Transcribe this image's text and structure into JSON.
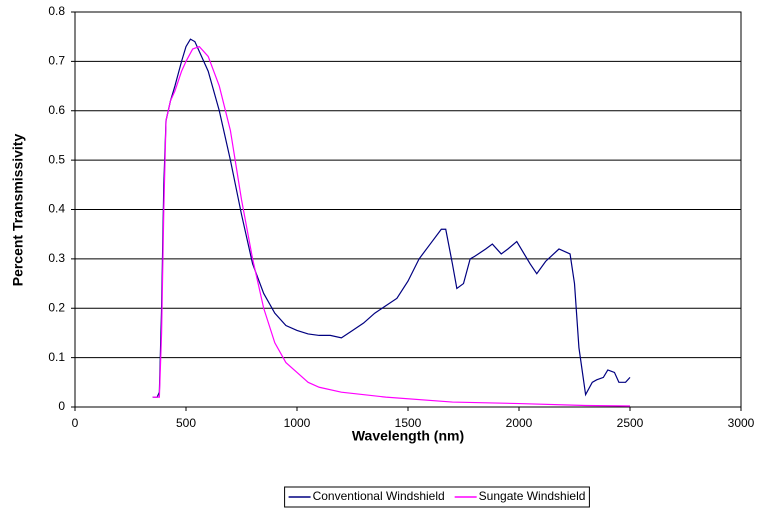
{
  "chart_data": {
    "type": "line",
    "xlabel": "Wavelength (nm)",
    "ylabel": "Percent Transmissivity",
    "xlim": [
      0,
      3000
    ],
    "xticks": [
      0,
      500,
      1000,
      1500,
      2000,
      2500,
      3000
    ],
    "ylim": [
      0,
      0.8
    ],
    "yticks": [
      0,
      0.1,
      0.2,
      0.3,
      0.4,
      0.5,
      0.6,
      0.7,
      0.8
    ],
    "grid": true,
    "legend": "bottom",
    "series": [
      {
        "name": "Conventional Windshield",
        "color": "#000080",
        "x": [
          350,
          370,
          380,
          390,
          400,
          410,
          430,
          450,
          480,
          500,
          520,
          540,
          560,
          600,
          650,
          700,
          750,
          800,
          850,
          900,
          950,
          1000,
          1050,
          1100,
          1150,
          1200,
          1250,
          1300,
          1350,
          1400,
          1450,
          1500,
          1550,
          1600,
          1650,
          1670,
          1700,
          1720,
          1750,
          1780,
          1800,
          1850,
          1880,
          1920,
          1950,
          1990,
          2050,
          2080,
          2120,
          2180,
          2230,
          2250,
          2270,
          2300,
          2330,
          2350,
          2380,
          2400,
          2430,
          2450,
          2480,
          2500
        ],
        "values": [
          0.02,
          0.02,
          0.03,
          0.2,
          0.45,
          0.58,
          0.62,
          0.65,
          0.7,
          0.73,
          0.745,
          0.74,
          0.72,
          0.68,
          0.6,
          0.5,
          0.39,
          0.29,
          0.23,
          0.19,
          0.165,
          0.155,
          0.148,
          0.145,
          0.145,
          0.14,
          0.155,
          0.17,
          0.19,
          0.205,
          0.22,
          0.255,
          0.3,
          0.33,
          0.36,
          0.36,
          0.29,
          0.24,
          0.25,
          0.3,
          0.305,
          0.32,
          0.33,
          0.31,
          0.32,
          0.335,
          0.29,
          0.27,
          0.295,
          0.32,
          0.31,
          0.25,
          0.12,
          0.025,
          0.05,
          0.055,
          0.06,
          0.075,
          0.07,
          0.05,
          0.05,
          0.06
        ]
      },
      {
        "name": "Sungate Windshield",
        "color": "#ff00ff",
        "x": [
          350,
          380,
          390,
          400,
          410,
          430,
          450,
          480,
          500,
          530,
          560,
          600,
          650,
          700,
          750,
          800,
          850,
          900,
          950,
          1000,
          1050,
          1100,
          1200,
          1400,
          1700,
          2000,
          2300,
          2500
        ],
        "values": [
          0.02,
          0.02,
          0.15,
          0.4,
          0.58,
          0.62,
          0.64,
          0.68,
          0.7,
          0.725,
          0.73,
          0.71,
          0.65,
          0.56,
          0.42,
          0.3,
          0.2,
          0.13,
          0.09,
          0.07,
          0.05,
          0.04,
          0.03,
          0.02,
          0.01,
          0.007,
          0.003,
          0.002
        ]
      }
    ]
  }
}
